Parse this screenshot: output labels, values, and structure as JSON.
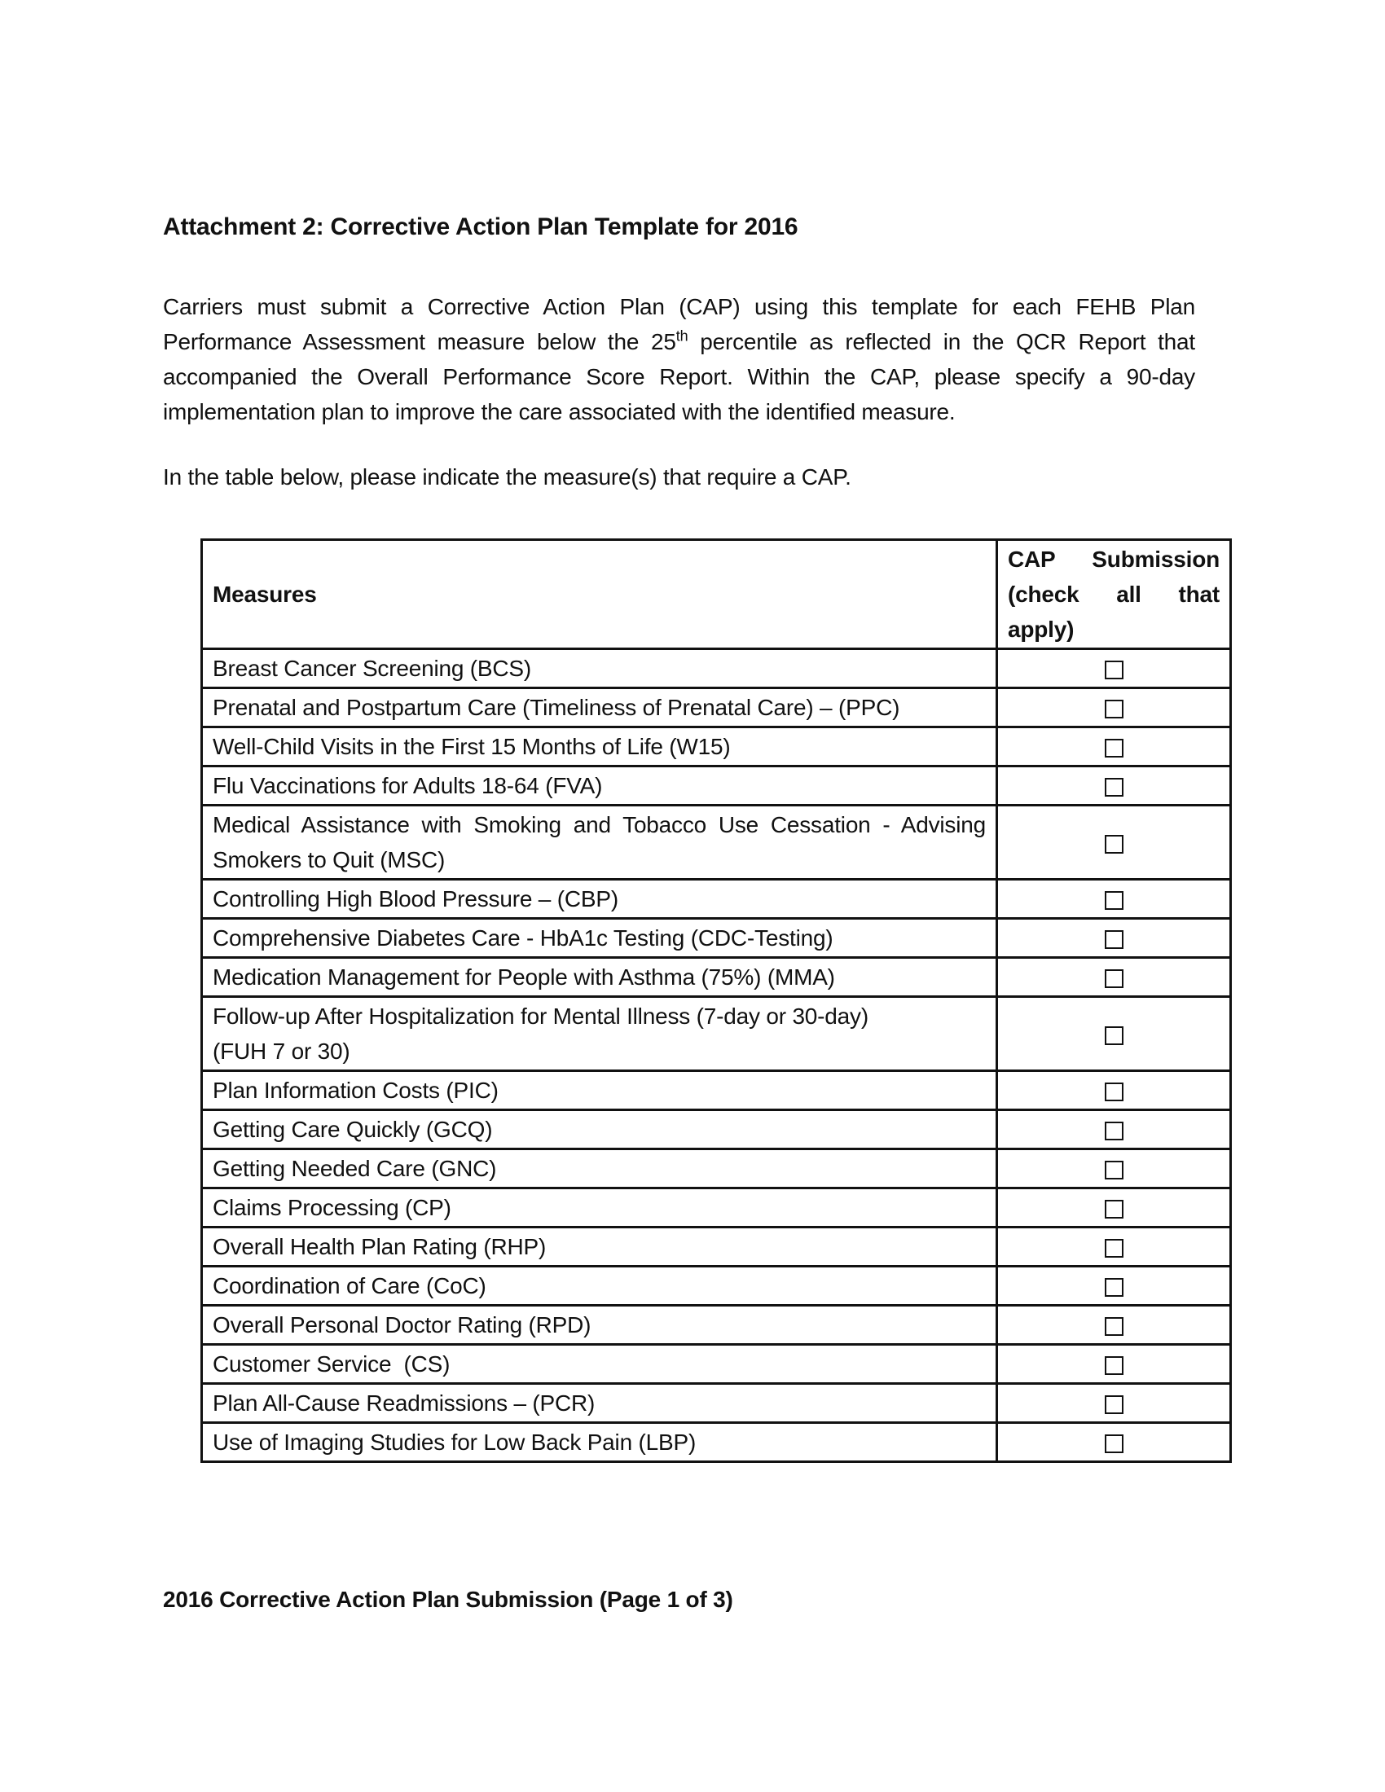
{
  "page": {
    "title": "Attachment 2: Corrective Action Plan Template for 2016",
    "intro": {
      "part1": "Carriers must submit a Corrective Action Plan (CAP) using this template for each FEHB Plan Performance Assessment measure below the 25",
      "superscript": "th",
      "part2": " percentile as reflected in the QCR Report that accompanied the Overall Performance Score Report. Within the CAP, please specify a 90-day implementation plan to improve the care associated with the identified measure."
    },
    "table_note": "In the table below, please indicate the measure(s) that require a CAP.",
    "footer": "2016 Corrective Action Plan Submission (Page 1 of 3)"
  },
  "measures_table": {
    "columns": [
      "Measures",
      "CAP Submission (check all that apply)"
    ],
    "rows": [
      {
        "label": "Breast Cancer Screening (BCS)",
        "checked": false
      },
      {
        "label": "Prenatal and Postpartum Care (Timeliness of Prenatal Care) – (PPC)",
        "checked": false
      },
      {
        "label": "Well-Child Visits in the First 15 Months of Life (W15)",
        "checked": false
      },
      {
        "label": "Flu Vaccinations for Adults 18-64 (FVA)",
        "checked": false
      },
      {
        "label": "Medical Assistance with Smoking and Tobacco Use Cessation - Advising Smokers to Quit (MSC)",
        "checked": false
      },
      {
        "label": "Controlling High Blood Pressure – (CBP)",
        "checked": false
      },
      {
        "label": "Comprehensive Diabetes Care - HbA1c Testing (CDC-Testing)",
        "checked": false
      },
      {
        "label": "Medication Management for People with Asthma (75%) (MMA)",
        "checked": false
      },
      {
        "label": "Follow-up After Hospitalization for Mental Illness (7-day or 30-day)\n(FUH 7 or 30)",
        "checked": false
      },
      {
        "label": "Plan Information Costs (PIC)",
        "checked": false
      },
      {
        "label": "Getting Care Quickly (GCQ)",
        "checked": false
      },
      {
        "label": "Getting Needed Care (GNC)",
        "checked": false
      },
      {
        "label": "Claims Processing (CP)",
        "checked": false
      },
      {
        "label": "Overall Health Plan Rating (RHP)",
        "checked": false
      },
      {
        "label": "Coordination of Care (CoC)",
        "checked": false
      },
      {
        "label": "Overall Personal Doctor Rating (RPD)",
        "checked": false
      },
      {
        "label": "Customer Service  (CS)",
        "checked": false
      },
      {
        "label": "Plan All-Cause Readmissions – (PCR)",
        "checked": false
      },
      {
        "label": "Use of Imaging Studies for Low Back Pain (LBP)",
        "checked": false
      }
    ]
  }
}
